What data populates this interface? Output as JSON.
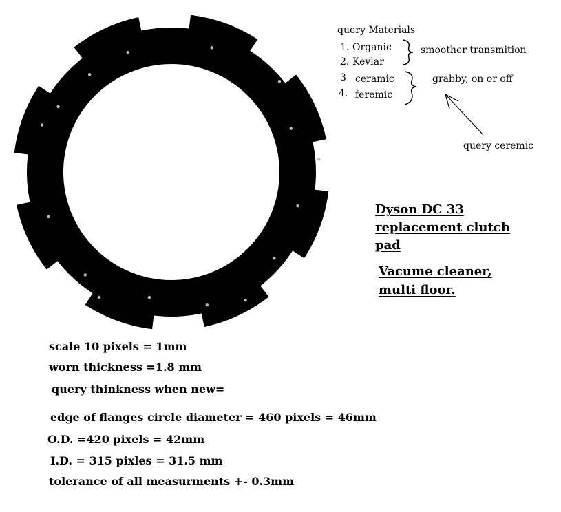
{
  "materials": {
    "header": "query Materials",
    "items": [
      {
        "num": "1.",
        "name": "Organic"
      },
      {
        "num": "2.",
        "name": "Kevlar"
      },
      {
        "num": "3",
        "name": "ceramic"
      },
      {
        "num": "4.",
        "name": "feremic"
      }
    ],
    "group_smooth": "smoother transmition",
    "group_grabby": "grabby, on or off",
    "arrow_note": "query ceremic"
  },
  "title": {
    "line1": "Dyson DC 33",
    "line2": "replacement clutch",
    "line3": "pad",
    "sub1": "Vacume cleaner,",
    "sub2": "multi floor."
  },
  "notes": {
    "scale": "scale 10 pixels = 1mm",
    "worn": "worn thickness =1.8 mm",
    "new": "query thinkness when new=",
    "flange": "edge of flanges circle diameter = 460 pixels =  46mm",
    "od": "O.D. =420 pixels = 42mm",
    "id": "I.D. = 315 pixles = 31.5 mm",
    "tolerance": "tolerance of all measurments +- 0.3mm"
  },
  "colors": {
    "pad": "#000000",
    "background": "#ffffff",
    "rivet": "#bbbbbb"
  }
}
